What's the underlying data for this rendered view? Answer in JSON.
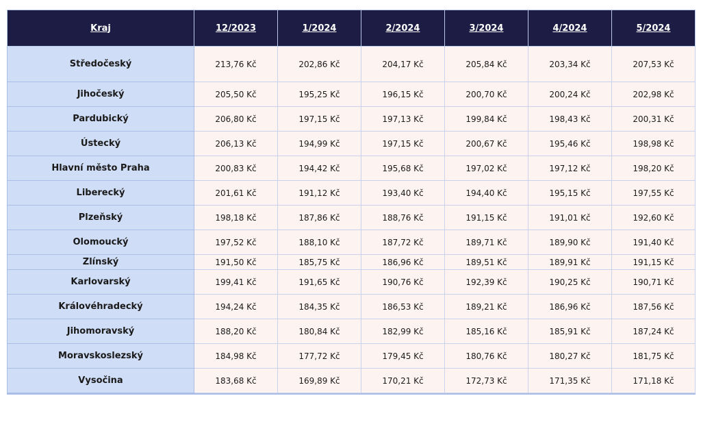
{
  "header": {
    "kraj": "Kraj",
    "months": [
      "12/2023",
      "1/2024",
      "2/2024",
      "3/2024",
      "4/2024",
      "5/2024"
    ]
  },
  "rows": [
    {
      "kraj": "Středočeský",
      "values": [
        "213,76 Kč",
        "202,86 Kč",
        "204,17 Kč",
        "205,84 Kč",
        "203,34 Kč",
        "207,53 Kč"
      ]
    },
    {
      "kraj": "Jihočeský",
      "values": [
        "205,50 Kč",
        "195,25 Kč",
        "196,15 Kč",
        "200,70 Kč",
        "200,24 Kč",
        "202,98 Kč"
      ]
    },
    {
      "kraj": "Pardubický",
      "values": [
        "206,80 Kč",
        "197,15 Kč",
        "197,13 Kč",
        "199,84 Kč",
        "198,43 Kč",
        "200,31 Kč"
      ]
    },
    {
      "kraj": "Ústecký",
      "values": [
        "206,13 Kč",
        "194,99 Kč",
        "197,15 Kč",
        "200,67 Kč",
        "195,46 Kč",
        "198,98 Kč"
      ]
    },
    {
      "kraj": "Hlavní město Praha",
      "values": [
        "200,83 Kč",
        "194,42 Kč",
        "195,68 Kč",
        "197,02 Kč",
        "197,12 Kč",
        "198,20 Kč"
      ]
    },
    {
      "kraj": "Liberecký",
      "values": [
        "201,61 Kč",
        "191,12 Kč",
        "193,40 Kč",
        "194,40 Kč",
        "195,15 Kč",
        "197,55 Kč"
      ]
    },
    {
      "kraj": "Plzeňský",
      "values": [
        "198,18 Kč",
        "187,86 Kč",
        "188,76 Kč",
        "191,15 Kč",
        "191,01 Kč",
        "192,60 Kč"
      ]
    },
    {
      "kraj": "Olomoucký",
      "values": [
        "197,52 Kč",
        "188,10 Kč",
        "187,72 Kč",
        "189,71 Kč",
        "189,90 Kč",
        "191,40 Kč"
      ]
    },
    {
      "kraj": "Zlínský",
      "values": [
        "191,50 Kč",
        "185,75 Kč",
        "186,96 Kč",
        "189,51 Kč",
        "189,91 Kč",
        "191,15 Kč"
      ]
    },
    {
      "kraj": "Karlovarský",
      "values": [
        "199,41 Kč",
        "191,65 Kč",
        "190,76 Kč",
        "192,39 Kč",
        "190,25 Kč",
        "190,71 Kč"
      ]
    },
    {
      "kraj": "Královéhradecký",
      "values": [
        "194,24 Kč",
        "184,35 Kč",
        "186,53 Kč",
        "189,21 Kč",
        "186,96 Kč",
        "187,56 Kč"
      ]
    },
    {
      "kraj": "Jihomoravský",
      "values": [
        "188,20 Kč",
        "180,84 Kč",
        "182,99 Kč",
        "185,16 Kč",
        "185,91 Kč",
        "187,24 Kč"
      ]
    },
    {
      "kraj": "Moravskoslezský",
      "values": [
        "184,98 Kč",
        "177,72 Kč",
        "179,45 Kč",
        "180,76 Kč",
        "180,27 Kč",
        "181,75 Kč"
      ]
    },
    {
      "kraj": "Vysočina",
      "values": [
        "183,68 Kč",
        "169,89 Kč",
        "170,21 Kč",
        "172,73 Kč",
        "171,35 Kč",
        "171,18 Kč"
      ]
    }
  ],
  "colors": {
    "header_bg": "#1c1c45",
    "kraj_bg": "#d0ddf6",
    "cell_bg": "#fdf4f2"
  }
}
